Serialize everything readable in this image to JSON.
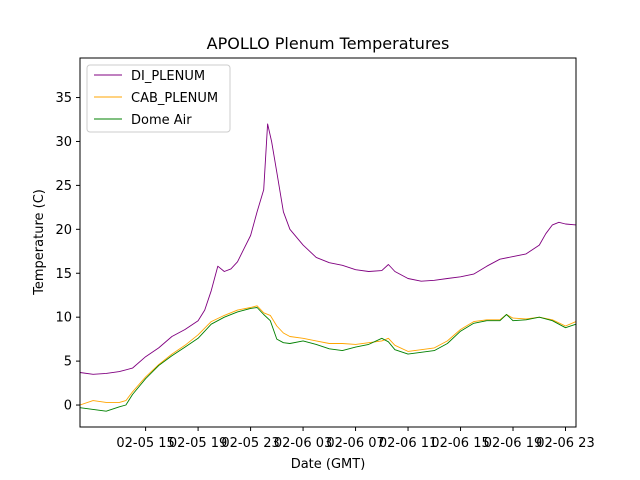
{
  "chart_data": {
    "type": "line",
    "title": "APOLLO Plenum Temperatures",
    "xlabel": "Date (GMT)",
    "ylabel": "Temperature (C)",
    "x_unit": "hours since 02-05 10:00 GMT",
    "xlim": [
      0,
      37.8
    ],
    "ylim": [
      -2.5,
      39.5
    ],
    "x_ticks": [
      {
        "x": 5,
        "label": "02-05 15"
      },
      {
        "x": 9,
        "label": "02-05 19"
      },
      {
        "x": 13,
        "label": "02-05 23"
      },
      {
        "x": 17,
        "label": "02-06 03"
      },
      {
        "x": 21,
        "label": "02-06 07"
      },
      {
        "x": 25,
        "label": "02-06 11"
      },
      {
        "x": 29,
        "label": "02-06 15"
      },
      {
        "x": 33,
        "label": "02-06 19"
      },
      {
        "x": 37,
        "label": "02-06 23"
      }
    ],
    "y_ticks": [
      0,
      5,
      10,
      15,
      20,
      25,
      30,
      35
    ],
    "legend_position": "top-left",
    "series": [
      {
        "name": "DI_PLENUM",
        "color": "#800080",
        "x": [
          0,
          1,
          2,
          3,
          4,
          5,
          6,
          7,
          8,
          9,
          9.5,
          10,
          10.5,
          11,
          11.5,
          12,
          12.5,
          13,
          13.5,
          14,
          14.3,
          14.6,
          15,
          15.5,
          16,
          17,
          18,
          19,
          20,
          21,
          22,
          23,
          23.5,
          24,
          25,
          26,
          27,
          28,
          29,
          30,
          31,
          32,
          33,
          34,
          35,
          35.5,
          36,
          36.5,
          37,
          37.8
        ],
        "y": [
          3.7,
          3.5,
          3.6,
          3.8,
          4.2,
          5.5,
          6.5,
          7.8,
          8.6,
          9.6,
          10.8,
          13.0,
          15.8,
          15.2,
          15.5,
          16.3,
          17.8,
          19.3,
          22.0,
          24.5,
          32.0,
          30.0,
          26.5,
          22.0,
          20.0,
          18.2,
          16.8,
          16.2,
          15.9,
          15.4,
          15.2,
          15.3,
          16.0,
          15.2,
          14.4,
          14.1,
          14.2,
          14.4,
          14.6,
          14.9,
          15.8,
          16.6,
          16.9,
          17.2,
          18.2,
          19.5,
          20.5,
          20.8,
          20.6,
          20.5
        ]
      },
      {
        "name": "CAB_PLENUM",
        "color": "#ffa500",
        "x": [
          0,
          1,
          2,
          3,
          3.5,
          4,
          5,
          6,
          7,
          8,
          9,
          10,
          11,
          12,
          13,
          13.5,
          14,
          14.5,
          15,
          15.5,
          16,
          17,
          18,
          19,
          20,
          21,
          22,
          23,
          23.5,
          24,
          25,
          26,
          27,
          28,
          29,
          30,
          31,
          32,
          32.5,
          33,
          34,
          35,
          36,
          37,
          37.8
        ],
        "y": [
          0.0,
          0.5,
          0.3,
          0.3,
          0.5,
          1.5,
          3.2,
          4.6,
          5.8,
          6.8,
          8.0,
          9.5,
          10.2,
          10.8,
          11.1,
          11.3,
          10.5,
          10.2,
          9.0,
          8.2,
          7.8,
          7.6,
          7.3,
          7.0,
          7.0,
          6.9,
          7.1,
          7.3,
          7.6,
          6.8,
          6.1,
          6.3,
          6.5,
          7.3,
          8.6,
          9.5,
          9.7,
          9.7,
          10.3,
          9.9,
          9.8,
          10.0,
          9.7,
          9.0,
          9.5
        ]
      },
      {
        "name": "Dome Air",
        "color": "#008000",
        "x": [
          0,
          1,
          2,
          3,
          3.5,
          4,
          5,
          6,
          7,
          8,
          9,
          10,
          11,
          12,
          13,
          13.5,
          14,
          14.5,
          15,
          15.5,
          16,
          17,
          18,
          19,
          20,
          21,
          22,
          23,
          23.5,
          24,
          25,
          26,
          27,
          28,
          29,
          30,
          31,
          32,
          32.5,
          33,
          34,
          35,
          36,
          37,
          37.8
        ],
        "y": [
          -0.3,
          -0.5,
          -0.7,
          -0.2,
          0.0,
          1.2,
          3.0,
          4.5,
          5.6,
          6.6,
          7.6,
          9.2,
          10.0,
          10.6,
          11.0,
          11.1,
          10.3,
          9.6,
          7.5,
          7.1,
          7.0,
          7.3,
          6.9,
          6.4,
          6.2,
          6.6,
          6.9,
          7.6,
          7.2,
          6.3,
          5.8,
          6.0,
          6.2,
          7.0,
          8.4,
          9.3,
          9.6,
          9.6,
          10.3,
          9.6,
          9.7,
          10.0,
          9.6,
          8.8,
          9.2
        ]
      }
    ]
  }
}
